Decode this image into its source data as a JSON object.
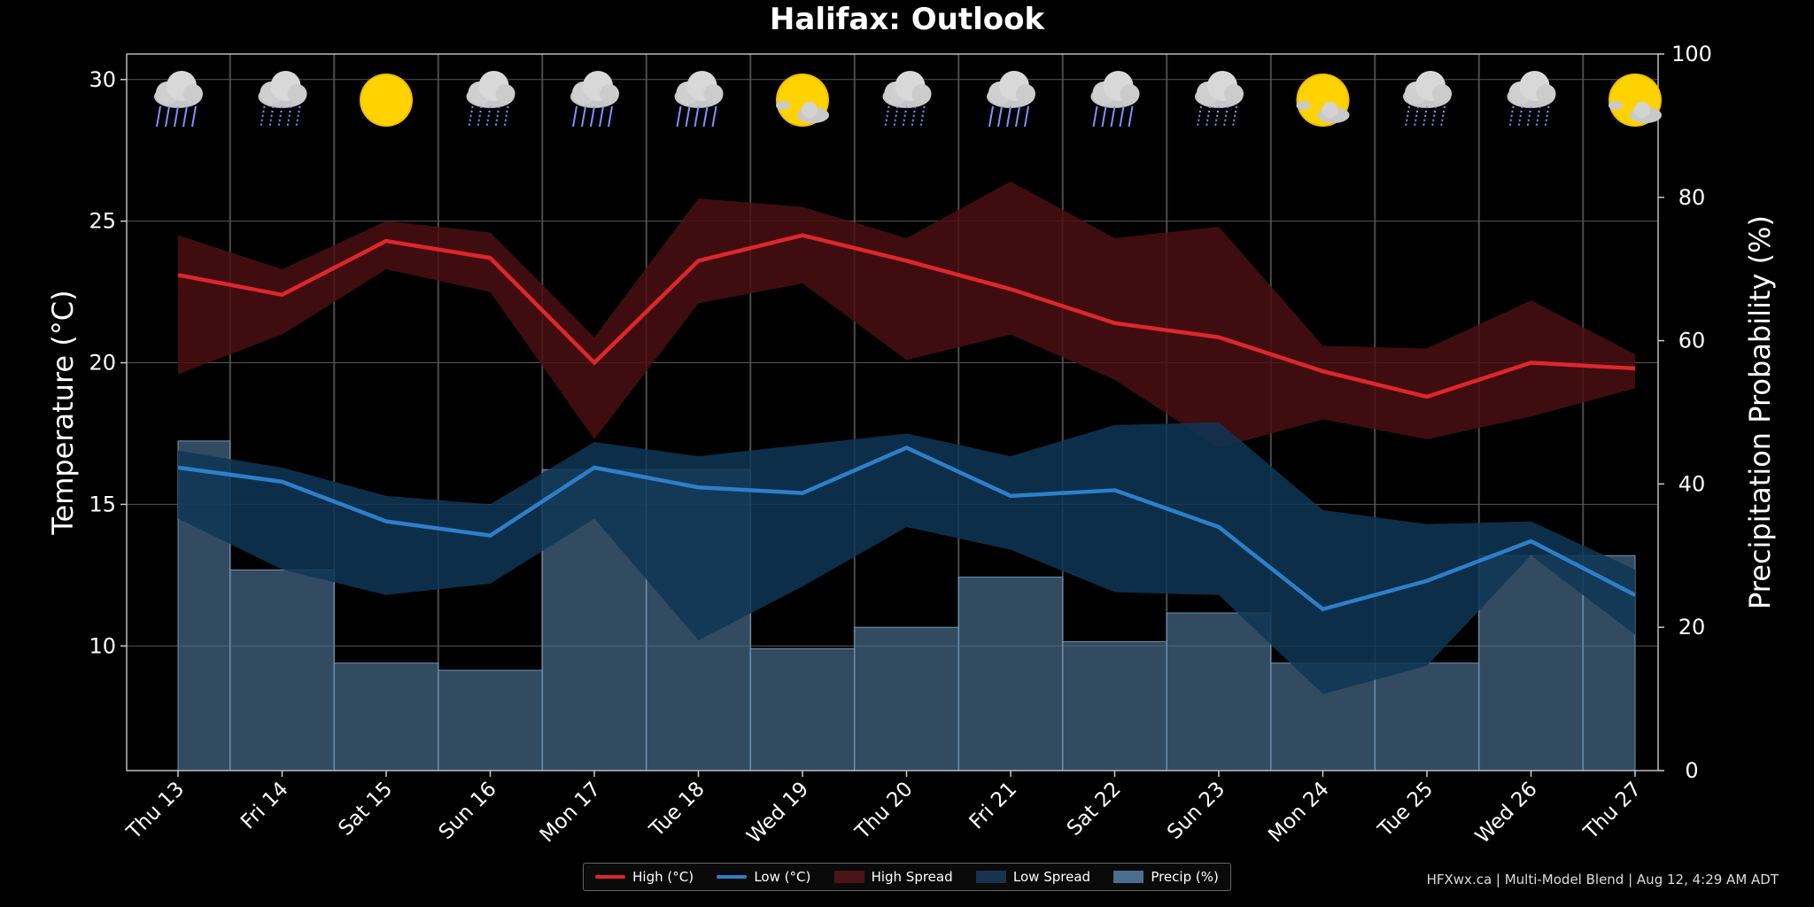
{
  "title": "Halifax: Outlook",
  "credit": "HFXwx.ca | Multi-Model Blend | Aug 12, 4:29 AM ADT",
  "legend": {
    "high": "High (°C)",
    "low": "Low (°C)",
    "high_spread": "High Spread",
    "low_spread": "Low Spread",
    "precip": "Precip (%)"
  },
  "colors": {
    "high": "#e0262b",
    "low": "#2d7fc9",
    "high_spread": "#3d0d10",
    "low_spread": "#0e2a44",
    "precip": "#4a6f8f",
    "background": "#000000"
  },
  "chart_data": {
    "type": "line",
    "title": "Halifax: Outlook",
    "xlabel": "",
    "ylabel": "Temperature (°C)",
    "y2label": "Precipitation Probability (%)",
    "ylim": [
      5.6,
      30.9
    ],
    "y2lim": [
      0,
      100
    ],
    "yticks": [
      10,
      15,
      20,
      25,
      30
    ],
    "y2ticks": [
      0,
      20,
      40,
      60,
      80,
      100
    ],
    "grid": true,
    "legend_position": "bottom-center",
    "categories": [
      "Thu 13",
      "Fri 14",
      "Sat 15",
      "Sun 16",
      "Mon 17",
      "Tue 18",
      "Wed 19",
      "Thu 20",
      "Fri 21",
      "Sat 22",
      "Sun 23",
      "Mon 24",
      "Tue 25",
      "Wed 26",
      "Thu 27"
    ],
    "weather_icons": [
      "rain",
      "rain-snow",
      "sun",
      "rain-snow",
      "rain",
      "rain",
      "sun-cloud",
      "rain-snow",
      "rain",
      "rain",
      "rain-snow",
      "sun-cloud",
      "rain-snow",
      "rain-snow",
      "sun-cloud"
    ],
    "series": [
      {
        "name": "High (°C)",
        "values": [
          23.1,
          22.4,
          24.3,
          23.7,
          20.0,
          23.6,
          24.5,
          23.6,
          22.6,
          21.4,
          20.9,
          19.7,
          18.8,
          20.0,
          19.8
        ]
      },
      {
        "name": "Low (°C)",
        "values": [
          16.3,
          15.8,
          14.4,
          13.9,
          16.3,
          15.6,
          15.4,
          17.0,
          15.3,
          15.5,
          14.2,
          11.3,
          12.3,
          13.7,
          11.8
        ]
      },
      {
        "name": "High Spread",
        "lower": [
          19.6,
          21.0,
          23.3,
          22.5,
          17.3,
          22.1,
          22.8,
          20.1,
          21.0,
          19.4,
          17.0,
          18.0,
          17.3,
          18.1,
          19.1
        ],
        "upper": [
          24.5,
          23.3,
          25.0,
          24.6,
          20.9,
          25.8,
          25.5,
          24.4,
          26.4,
          24.4,
          24.8,
          20.6,
          20.5,
          22.2,
          20.3
        ]
      },
      {
        "name": "Low Spread",
        "lower": [
          14.5,
          12.7,
          11.8,
          12.2,
          14.5,
          10.2,
          12.1,
          14.2,
          13.4,
          11.9,
          11.8,
          8.3,
          9.3,
          13.2,
          10.4
        ]
      },
      {
        "name": "Low Spread Upper",
        "values": [
          16.9,
          16.3,
          15.3,
          15.0,
          17.2,
          16.7,
          17.1,
          17.5,
          16.7,
          17.8,
          17.9,
          14.8,
          14.3,
          14.4,
          12.7
        ]
      },
      {
        "name": "Precip (%)",
        "values": [
          46,
          28,
          15,
          14,
          42,
          42,
          17,
          20,
          27,
          18,
          22,
          15,
          15,
          30,
          30
        ]
      }
    ]
  }
}
